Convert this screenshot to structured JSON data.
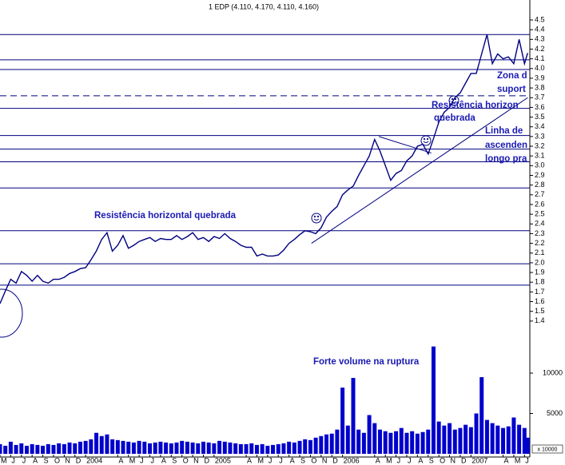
{
  "chart_data": {
    "type": "line",
    "title": "1 EDP (4.110, 4.170, 4.110, 4.160)",
    "x": [
      0,
      0.5,
      1,
      1.5,
      2,
      2.5,
      3,
      3.5,
      4,
      4.5,
      5,
      5.5,
      6,
      6.5,
      7,
      7.5,
      8,
      8.5,
      9,
      9.5,
      10,
      10.5,
      11,
      11.5,
      12,
      12.5,
      13,
      13.5,
      14,
      14.5,
      15,
      15.5,
      16,
      16.5,
      17,
      17.5,
      18,
      18.5,
      19,
      19.5,
      20,
      20.5,
      21,
      21.5,
      22,
      22.5,
      23,
      23.5,
      24,
      24.5,
      25,
      25.5,
      26,
      26.5,
      27,
      27.5,
      28,
      28.5,
      29,
      29.5,
      30,
      30.5,
      31,
      31.5,
      32,
      32.5,
      33,
      33.5,
      34,
      34.5,
      35,
      35.5,
      36,
      36.5,
      37,
      37.5,
      38,
      38.5,
      39,
      39.5,
      40,
      40.5,
      41,
      41.5,
      42,
      42.5,
      43,
      43.5,
      44,
      44.5,
      45,
      45.5,
      46,
      46.5,
      47,
      47.5,
      48,
      48.5,
      49,
      49.3
    ],
    "series": [
      {
        "name": "EDP",
        "color": "#000080",
        "values": [
          1.58,
          1.71,
          1.83,
          1.79,
          1.91,
          1.87,
          1.81,
          1.87,
          1.81,
          1.79,
          1.83,
          1.83,
          1.85,
          1.89,
          1.91,
          1.94,
          1.95,
          2.03,
          2.12,
          2.24,
          2.31,
          2.12,
          2.18,
          2.28,
          2.15,
          2.18,
          2.22,
          2.24,
          2.26,
          2.22,
          2.25,
          2.24,
          2.24,
          2.28,
          2.24,
          2.27,
          2.31,
          2.24,
          2.26,
          2.22,
          2.27,
          2.25,
          2.3,
          2.25,
          2.22,
          2.18,
          2.16,
          2.16,
          2.07,
          2.09,
          2.07,
          2.07,
          2.08,
          2.13,
          2.2,
          2.24,
          2.29,
          2.33,
          2.32,
          2.3,
          2.36,
          2.47,
          2.53,
          2.58,
          2.7,
          2.75,
          2.79,
          2.9,
          3.0,
          3.1,
          3.27,
          3.15,
          3.0,
          2.85,
          2.92,
          2.95,
          3.05,
          3.1,
          3.2,
          3.22,
          3.12,
          3.28,
          3.45,
          3.55,
          3.6,
          3.7,
          3.75,
          3.85,
          3.95,
          3.95,
          4.15,
          4.35,
          4.05,
          4.15,
          4.1,
          4.12,
          4.05,
          4.3,
          4.05,
          4.16
        ]
      },
      {
        "name": "Volume",
        "color": "#0000cc",
        "axis": "y2",
        "values": [
          1200,
          1000,
          1500,
          1100,
          1300,
          1000,
          1200,
          1100,
          1000,
          1200,
          1100,
          1300,
          1200,
          1400,
          1300,
          1500,
          1600,
          1800,
          2600,
          2200,
          2400,
          1800,
          1700,
          1600,
          1500,
          1400,
          1600,
          1500,
          1300,
          1400,
          1500,
          1400,
          1300,
          1400,
          1600,
          1500,
          1400,
          1300,
          1500,
          1400,
          1300,
          1600,
          1500,
          1400,
          1300,
          1200,
          1200,
          1300,
          1100,
          1200,
          1000,
          1100,
          1200,
          1300,
          1500,
          1400,
          1600,
          1800,
          1700,
          2000,
          2200,
          2400,
          2500,
          3000,
          8200,
          3500,
          9400,
          3000,
          2600,
          4800,
          3800,
          3000,
          2800,
          2600,
          2800,
          3200,
          2600,
          2800,
          2500,
          2700,
          3000,
          13300,
          4000,
          3500,
          3800,
          3000,
          3200,
          3600,
          3300,
          5000,
          9500,
          4200,
          3800,
          3500,
          3200,
          3400,
          4500,
          3600,
          3200,
          2000
        ]
      }
    ],
    "xlim": [
      0,
      49.5
    ],
    "xticks": [
      {
        "value": 0,
        "label": "M"
      },
      {
        "value": 1,
        "label": "J"
      },
      {
        "value": 2,
        "label": "J"
      },
      {
        "value": 3,
        "label": "A"
      },
      {
        "value": 4,
        "label": "S"
      },
      {
        "value": 5,
        "label": "O"
      },
      {
        "value": 6,
        "label": "N"
      },
      {
        "value": 7,
        "label": "D"
      },
      {
        "value": 8,
        "label": "2004"
      },
      {
        "value": 11,
        "label": "A"
      },
      {
        "value": 12,
        "label": "M"
      },
      {
        "value": 13,
        "label": "J"
      },
      {
        "value": 14,
        "label": "J"
      },
      {
        "value": 15,
        "label": "A"
      },
      {
        "value": 16,
        "label": "S"
      },
      {
        "value": 17,
        "label": "O"
      },
      {
        "value": 18,
        "label": "N"
      },
      {
        "value": 19,
        "label": "D"
      },
      {
        "value": 20,
        "label": "2005"
      },
      {
        "value": 23,
        "label": "A"
      },
      {
        "value": 24,
        "label": "M"
      },
      {
        "value": 25,
        "label": "J"
      },
      {
        "value": 26,
        "label": "J"
      },
      {
        "value": 27,
        "label": "A"
      },
      {
        "value": 28,
        "label": "S"
      },
      {
        "value": 29,
        "label": "O"
      },
      {
        "value": 30,
        "label": "N"
      },
      {
        "value": 31,
        "label": "D"
      },
      {
        "value": 32,
        "label": "2006"
      },
      {
        "value": 35,
        "label": "A"
      },
      {
        "value": 36,
        "label": "M"
      },
      {
        "value": 37,
        "label": "J"
      },
      {
        "value": 38,
        "label": "J"
      },
      {
        "value": 39,
        "label": "A"
      },
      {
        "value": 40,
        "label": "S"
      },
      {
        "value": 41,
        "label": "O"
      },
      {
        "value": 42,
        "label": "N"
      },
      {
        "value": 43,
        "label": "D"
      },
      {
        "value": 44,
        "label": "2007"
      },
      {
        "value": 47,
        "label": "A"
      },
      {
        "value": 48,
        "label": "M"
      },
      {
        "value": 49,
        "label": "J"
      }
    ],
    "ylim": [
      1.3,
      4.5
    ],
    "yticks": [
      4.5,
      4.4,
      4.3,
      4.2,
      4.1,
      {
        "value": 4,
        "label": "4.0"
      },
      3.9,
      3.8,
      3.7,
      3.6,
      3.5,
      3.4,
      3.3,
      3.2,
      3.1,
      {
        "value": 3,
        "label": "3.0"
      },
      2.9,
      2.8,
      2.7,
      2.6,
      2.5,
      2.4,
      2.3,
      2.2,
      2.1,
      {
        "value": 2,
        "label": "2.0"
      },
      1.9,
      1.8,
      1.7,
      1.6,
      1.5,
      1.4
    ],
    "y2lim": [
      0,
      15000
    ],
    "y2ticks": [
      10000,
      5000
    ],
    "y2_unit_label": "x 10000",
    "levels": [
      {
        "value": 4.35,
        "dashed": false
      },
      {
        "value": 4.09,
        "dashed": false
      },
      {
        "value": 3.99,
        "dashed": false
      },
      {
        "value": 3.72,
        "dashed": true
      },
      {
        "value": 3.59,
        "dashed": false
      },
      {
        "value": 3.31,
        "dashed": false
      },
      {
        "value": 3.17,
        "dashed": false
      },
      {
        "value": 3.04,
        "dashed": false
      },
      {
        "value": 2.77,
        "dashed": false
      },
      {
        "value": 2.33,
        "dashed": false
      },
      {
        "value": 1.99,
        "dashed": false
      },
      {
        "value": 1.77,
        "dashed": false
      }
    ],
    "trendlines": [
      {
        "x": [
          29.1,
          49.3
        ],
        "y": [
          2.2,
          3.7
        ]
      },
      {
        "x": [
          35.4,
          40.3
        ],
        "y": [
          3.3,
          3.13
        ]
      }
    ],
    "annotations": [
      "Resistência horizontal quebrada",
      "Forte volume na ruptura",
      "Resistência horizon",
      "quebrada",
      "Linha de",
      "ascenden",
      "longo pra",
      "Zona d",
      "suport"
    ]
  }
}
